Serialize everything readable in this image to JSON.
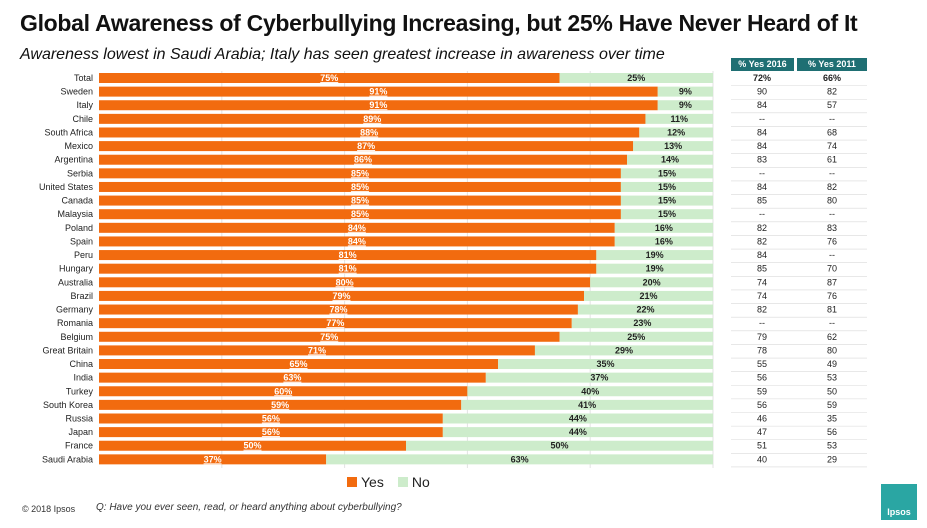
{
  "title": "Global Awareness of Cyberbullying Increasing, but 25% Have Never Heard of It",
  "subtitle": "Awareness lowest in Saudi Arabia; Italy has seen greatest increase in awareness over time",
  "table_headers": [
    "% Yes 2016",
    "% Yes 2011"
  ],
  "legend": {
    "yes": "Yes",
    "no": "No"
  },
  "colors": {
    "yes": "#f26b0f",
    "no": "#cdeccb",
    "header": "#1f6f73",
    "logo": "#2aa6a3"
  },
  "footer": {
    "copyright": "© 2018 Ipsos",
    "question": "Q: Have you ever seen, read, or heard anything about cyberbullying?"
  },
  "logo_text": "Ipsos",
  "chart_data": {
    "type": "bar",
    "orientation": "horizontal",
    "stacked": true,
    "categories": [
      "Total",
      "Sweden",
      "Italy",
      "Chile",
      "South Africa",
      "Mexico",
      "Argentina",
      "Serbia",
      "United States",
      "Canada",
      "Malaysia",
      "Poland",
      "Spain",
      "Peru",
      "Hungary",
      "Australia",
      "Brazil",
      "Germany",
      "Romania",
      "Belgium",
      "Great Britain",
      "China",
      "India",
      "Turkey",
      "South Korea",
      "Russia",
      "Japan",
      "France",
      "Saudi Arabia"
    ],
    "series": [
      {
        "name": "Yes",
        "values": [
          75,
          91,
          91,
          89,
          88,
          87,
          86,
          85,
          85,
          85,
          85,
          84,
          84,
          81,
          81,
          80,
          79,
          78,
          77,
          75,
          71,
          65,
          63,
          60,
          59,
          56,
          56,
          50,
          37
        ]
      },
      {
        "name": "No",
        "values": [
          25,
          9,
          9,
          11,
          12,
          13,
          14,
          15,
          15,
          15,
          15,
          16,
          16,
          19,
          19,
          20,
          21,
          22,
          23,
          25,
          29,
          35,
          37,
          40,
          41,
          44,
          44,
          50,
          63
        ]
      }
    ],
    "xlim": [
      0,
      100
    ],
    "table": {
      "yes_2016": [
        "72%",
        "90",
        "84",
        "--",
        "84",
        "84",
        "83",
        "--",
        "84",
        "85",
        "--",
        "82",
        "82",
        "84",
        "85",
        "74",
        "74",
        "82",
        "--",
        "79",
        "78",
        "55",
        "56",
        "59",
        "56",
        "46",
        "47",
        "51",
        "40"
      ],
      "yes_2011": [
        "66%",
        "82",
        "57",
        "--",
        "68",
        "74",
        "61",
        "--",
        "82",
        "80",
        "--",
        "83",
        "76",
        "--",
        "70",
        "87",
        "76",
        "81",
        "--",
        "62",
        "80",
        "49",
        "53",
        "50",
        "59",
        "35",
        "56",
        "53",
        "29"
      ]
    }
  }
}
